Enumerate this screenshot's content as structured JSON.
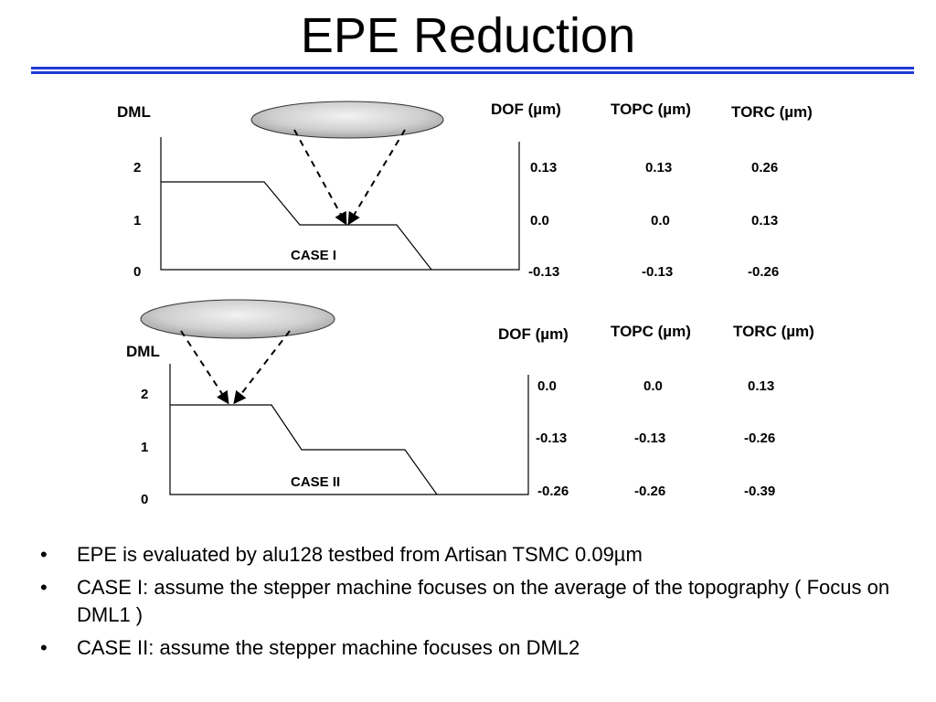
{
  "slide": {
    "title": "EPE Reduction"
  },
  "accent_color": "#1f3bd6",
  "case1": {
    "axis_label": "DML",
    "ticks": [
      "2",
      "1",
      "0"
    ],
    "case_label": "CASE I",
    "headers": [
      "DOF (µm)",
      "TOPC (µm)",
      "TORC (µm)"
    ],
    "rows": [
      [
        "0.13",
        "0.13",
        "0.26"
      ],
      [
        "0.0",
        "0.0",
        "0.13"
      ],
      [
        "-0.13",
        "-0.13",
        "-0.26"
      ]
    ]
  },
  "case2": {
    "axis_label": "DML",
    "ticks": [
      "2",
      "1",
      "0"
    ],
    "case_label": "CASE II",
    "headers": [
      "DOF (µm)",
      "TOPC (µm)",
      "TORC (µm)"
    ],
    "rows": [
      [
        "0.0",
        "0.0",
        "0.13"
      ],
      [
        "-0.13",
        "-0.13",
        "-0.26"
      ],
      [
        "-0.26",
        "-0.26",
        "-0.39"
      ]
    ]
  },
  "bullets": [
    "EPE is evaluated by alu128 testbed from Artisan TSMC 0.09µm",
    "CASE I: assume the stepper machine focuses on the average of the topography ( Focus on DML1 )",
    "CASE II: assume the stepper machine focuses on DML2"
  ]
}
